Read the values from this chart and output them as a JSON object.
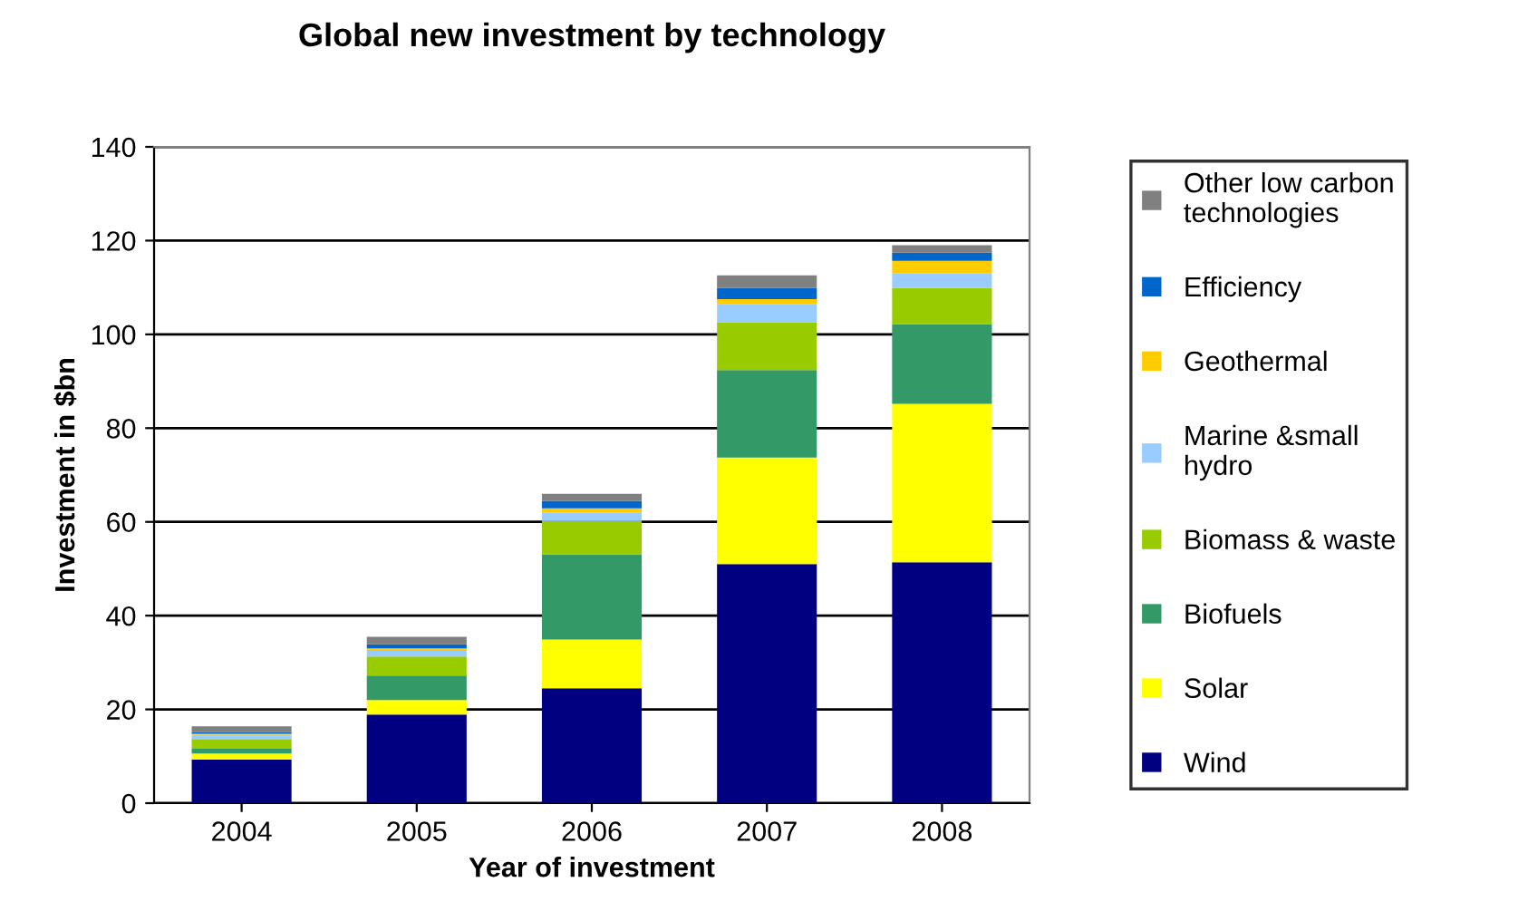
{
  "chart_data": {
    "type": "bar",
    "title": "Global new investment by technology",
    "xlabel": "Year of investment",
    "ylabel": "Investment in $bn",
    "categories": [
      "2004",
      "2005",
      "2006",
      "2007",
      "2008"
    ],
    "stacked": true,
    "ylim": [
      0,
      140
    ],
    "yticks": [
      0,
      20,
      40,
      60,
      80,
      100,
      120,
      140
    ],
    "grid": "y",
    "legend": "right",
    "series": [
      {
        "name": "Wind",
        "color": "#000080",
        "values": [
          9.3,
          18.9,
          24.5,
          51.0,
          51.4
        ]
      },
      {
        "name": "Solar",
        "color": "#ffff00",
        "values": [
          1.3,
          3.1,
          10.4,
          22.7,
          33.8
        ]
      },
      {
        "name": "Biofuels",
        "color": "#339966",
        "values": [
          1.0,
          5.2,
          18.2,
          18.7,
          17.0
        ]
      },
      {
        "name": "Biomass & waste",
        "color": "#99cc00",
        "values": [
          2.1,
          4.1,
          7.1,
          10.2,
          7.7
        ]
      },
      {
        "name": "Marine &small hydro",
        "color": "#99ccff",
        "values": [
          0.9,
          1.2,
          1.8,
          3.9,
          3.1
        ]
      },
      {
        "name": "Geothermal",
        "color": "#ffcc00",
        "values": [
          0.2,
          0.5,
          0.9,
          1.0,
          2.7
        ]
      },
      {
        "name": "Efficiency",
        "color": "#0066cc",
        "values": [
          0.4,
          0.9,
          1.6,
          2.4,
          1.7
        ]
      },
      {
        "name": "Other low carbon technologies",
        "color": "#808080",
        "values": [
          1.2,
          1.6,
          1.5,
          2.7,
          1.6
        ]
      }
    ]
  }
}
